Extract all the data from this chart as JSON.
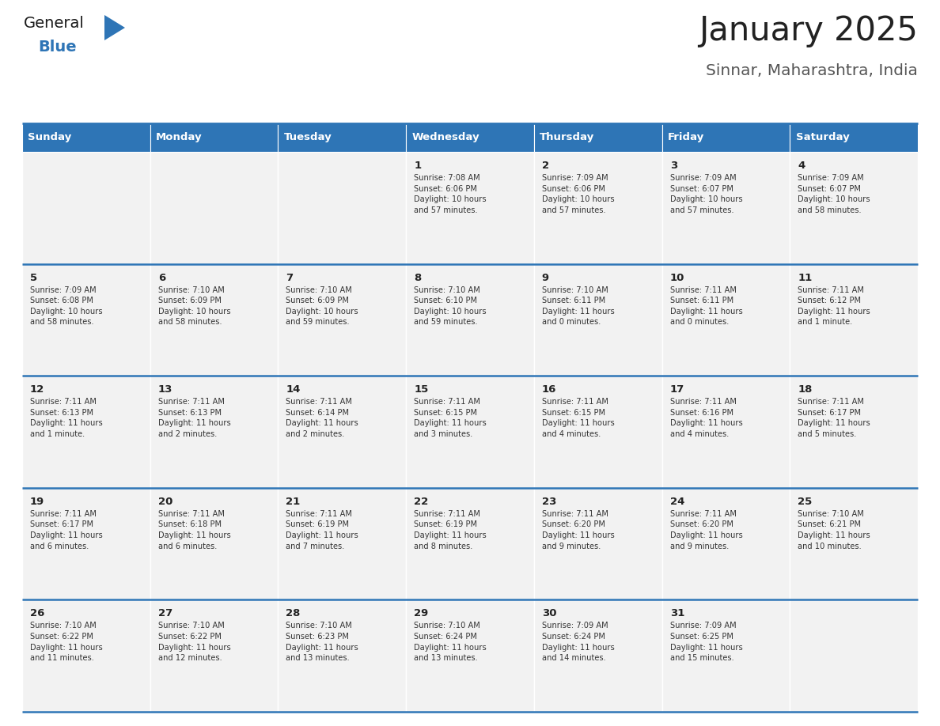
{
  "title": "January 2025",
  "subtitle": "Sinnar, Maharashtra, India",
  "header_color": "#2E75B6",
  "header_text_color": "#FFFFFF",
  "cell_bg_even": "#F2F2F2",
  "cell_bg_odd": "#FFFFFF",
  "cell_border_color": "#2E75B6",
  "cell_inner_border": "#CCCCCC",
  "day_names": [
    "Sunday",
    "Monday",
    "Tuesday",
    "Wednesday",
    "Thursday",
    "Friday",
    "Saturday"
  ],
  "days": [
    {
      "day": 1,
      "col": 3,
      "row": 0,
      "sunrise": "7:08 AM",
      "sunset": "6:06 PM",
      "daylight_hours": 10,
      "daylight_minutes": 57
    },
    {
      "day": 2,
      "col": 4,
      "row": 0,
      "sunrise": "7:09 AM",
      "sunset": "6:06 PM",
      "daylight_hours": 10,
      "daylight_minutes": 57
    },
    {
      "day": 3,
      "col": 5,
      "row": 0,
      "sunrise": "7:09 AM",
      "sunset": "6:07 PM",
      "daylight_hours": 10,
      "daylight_minutes": 57
    },
    {
      "day": 4,
      "col": 6,
      "row": 0,
      "sunrise": "7:09 AM",
      "sunset": "6:07 PM",
      "daylight_hours": 10,
      "daylight_minutes": 58
    },
    {
      "day": 5,
      "col": 0,
      "row": 1,
      "sunrise": "7:09 AM",
      "sunset": "6:08 PM",
      "daylight_hours": 10,
      "daylight_minutes": 58
    },
    {
      "day": 6,
      "col": 1,
      "row": 1,
      "sunrise": "7:10 AM",
      "sunset": "6:09 PM",
      "daylight_hours": 10,
      "daylight_minutes": 58
    },
    {
      "day": 7,
      "col": 2,
      "row": 1,
      "sunrise": "7:10 AM",
      "sunset": "6:09 PM",
      "daylight_hours": 10,
      "daylight_minutes": 59
    },
    {
      "day": 8,
      "col": 3,
      "row": 1,
      "sunrise": "7:10 AM",
      "sunset": "6:10 PM",
      "daylight_hours": 10,
      "daylight_minutes": 59
    },
    {
      "day": 9,
      "col": 4,
      "row": 1,
      "sunrise": "7:10 AM",
      "sunset": "6:11 PM",
      "daylight_hours": 11,
      "daylight_minutes": 0
    },
    {
      "day": 10,
      "col": 5,
      "row": 1,
      "sunrise": "7:11 AM",
      "sunset": "6:11 PM",
      "daylight_hours": 11,
      "daylight_minutes": 0
    },
    {
      "day": 11,
      "col": 6,
      "row": 1,
      "sunrise": "7:11 AM",
      "sunset": "6:12 PM",
      "daylight_hours": 11,
      "daylight_minutes": 1
    },
    {
      "day": 12,
      "col": 0,
      "row": 2,
      "sunrise": "7:11 AM",
      "sunset": "6:13 PM",
      "daylight_hours": 11,
      "daylight_minutes": 1
    },
    {
      "day": 13,
      "col": 1,
      "row": 2,
      "sunrise": "7:11 AM",
      "sunset": "6:13 PM",
      "daylight_hours": 11,
      "daylight_minutes": 2
    },
    {
      "day": 14,
      "col": 2,
      "row": 2,
      "sunrise": "7:11 AM",
      "sunset": "6:14 PM",
      "daylight_hours": 11,
      "daylight_minutes": 2
    },
    {
      "day": 15,
      "col": 3,
      "row": 2,
      "sunrise": "7:11 AM",
      "sunset": "6:15 PM",
      "daylight_hours": 11,
      "daylight_minutes": 3
    },
    {
      "day": 16,
      "col": 4,
      "row": 2,
      "sunrise": "7:11 AM",
      "sunset": "6:15 PM",
      "daylight_hours": 11,
      "daylight_minutes": 4
    },
    {
      "day": 17,
      "col": 5,
      "row": 2,
      "sunrise": "7:11 AM",
      "sunset": "6:16 PM",
      "daylight_hours": 11,
      "daylight_minutes": 4
    },
    {
      "day": 18,
      "col": 6,
      "row": 2,
      "sunrise": "7:11 AM",
      "sunset": "6:17 PM",
      "daylight_hours": 11,
      "daylight_minutes": 5
    },
    {
      "day": 19,
      "col": 0,
      "row": 3,
      "sunrise": "7:11 AM",
      "sunset": "6:17 PM",
      "daylight_hours": 11,
      "daylight_minutes": 6
    },
    {
      "day": 20,
      "col": 1,
      "row": 3,
      "sunrise": "7:11 AM",
      "sunset": "6:18 PM",
      "daylight_hours": 11,
      "daylight_minutes": 6
    },
    {
      "day": 21,
      "col": 2,
      "row": 3,
      "sunrise": "7:11 AM",
      "sunset": "6:19 PM",
      "daylight_hours": 11,
      "daylight_minutes": 7
    },
    {
      "day": 22,
      "col": 3,
      "row": 3,
      "sunrise": "7:11 AM",
      "sunset": "6:19 PM",
      "daylight_hours": 11,
      "daylight_minutes": 8
    },
    {
      "day": 23,
      "col": 4,
      "row": 3,
      "sunrise": "7:11 AM",
      "sunset": "6:20 PM",
      "daylight_hours": 11,
      "daylight_minutes": 9
    },
    {
      "day": 24,
      "col": 5,
      "row": 3,
      "sunrise": "7:11 AM",
      "sunset": "6:20 PM",
      "daylight_hours": 11,
      "daylight_minutes": 9
    },
    {
      "day": 25,
      "col": 6,
      "row": 3,
      "sunrise": "7:10 AM",
      "sunset": "6:21 PM",
      "daylight_hours": 11,
      "daylight_minutes": 10
    },
    {
      "day": 26,
      "col": 0,
      "row": 4,
      "sunrise": "7:10 AM",
      "sunset": "6:22 PM",
      "daylight_hours": 11,
      "daylight_minutes": 11
    },
    {
      "day": 27,
      "col": 1,
      "row": 4,
      "sunrise": "7:10 AM",
      "sunset": "6:22 PM",
      "daylight_hours": 11,
      "daylight_minutes": 12
    },
    {
      "day": 28,
      "col": 2,
      "row": 4,
      "sunrise": "7:10 AM",
      "sunset": "6:23 PM",
      "daylight_hours": 11,
      "daylight_minutes": 13
    },
    {
      "day": 29,
      "col": 3,
      "row": 4,
      "sunrise": "7:10 AM",
      "sunset": "6:24 PM",
      "daylight_hours": 11,
      "daylight_minutes": 13
    },
    {
      "day": 30,
      "col": 4,
      "row": 4,
      "sunrise": "7:09 AM",
      "sunset": "6:24 PM",
      "daylight_hours": 11,
      "daylight_minutes": 14
    },
    {
      "day": 31,
      "col": 5,
      "row": 4,
      "sunrise": "7:09 AM",
      "sunset": "6:25 PM",
      "daylight_hours": 11,
      "daylight_minutes": 15
    }
  ],
  "num_rows": 5,
  "logo_general_color": "#1a1a1a",
  "logo_blue_color": "#2E75B6",
  "logo_triangle_color": "#2E75B6"
}
